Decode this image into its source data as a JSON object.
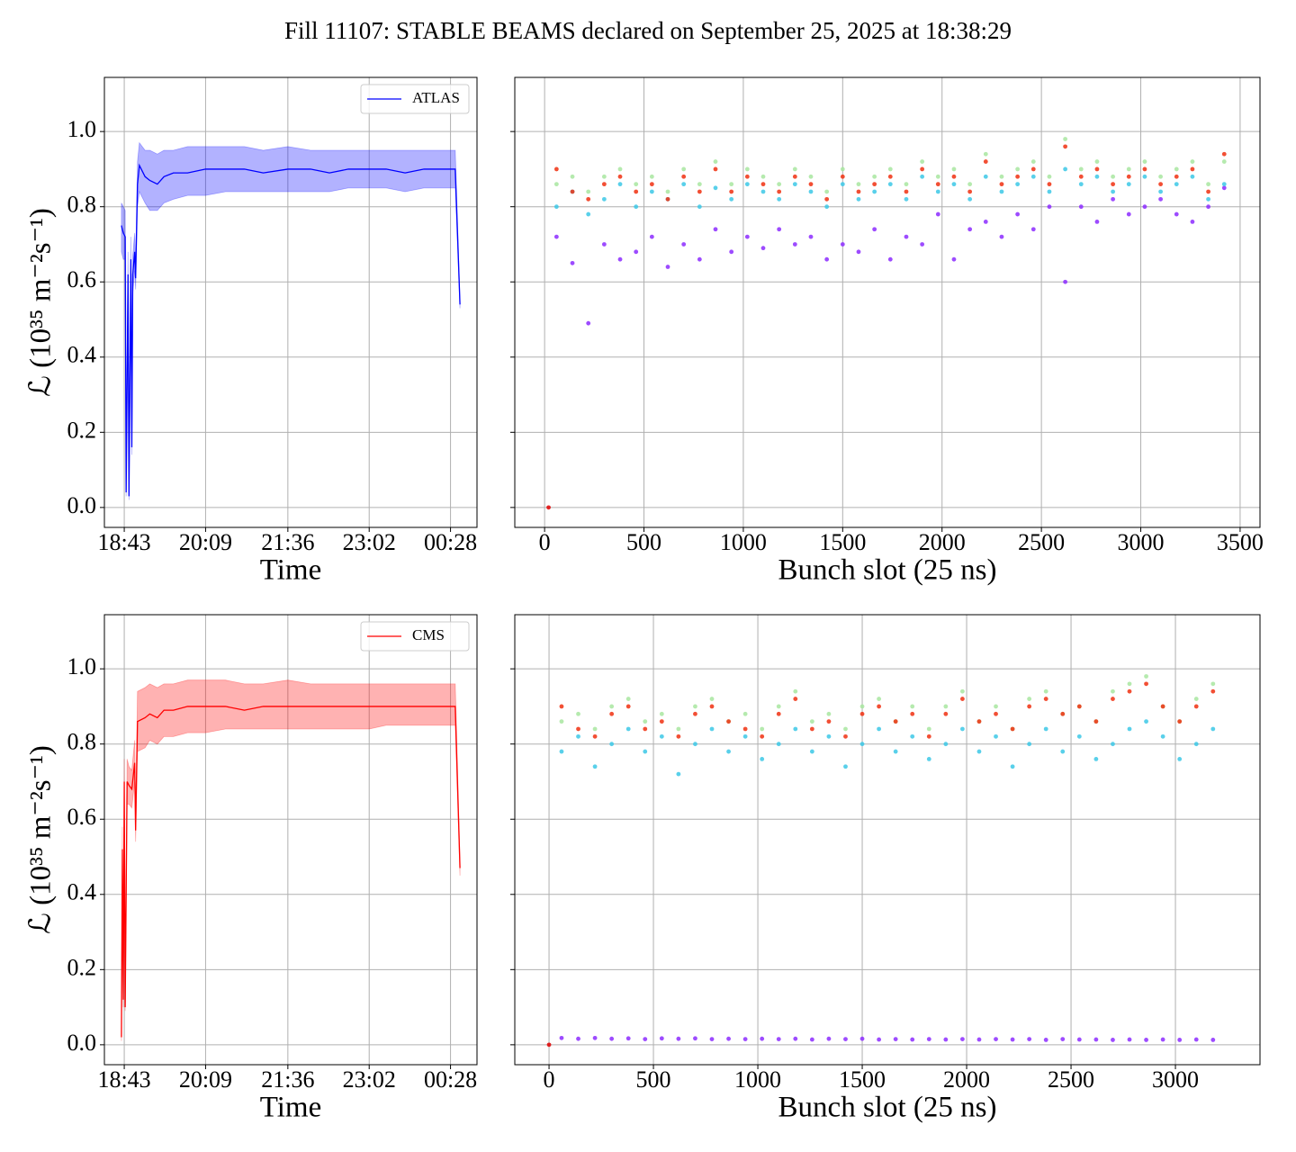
{
  "title": "Fill 11107: STABLE BEAMS declared on September 25, 2025 at 18:38:29",
  "chart_data": [
    {
      "type": "line",
      "xlabel": "Time",
      "ylabel": "ℒ (10³⁵ m⁻²s⁻¹)",
      "grid": true,
      "legend": "upper right",
      "xlim": [
        "18:22",
        "00:56"
      ],
      "xticks": [
        "18:43",
        "20:09",
        "21:36",
        "23:02",
        "00:28"
      ],
      "ylim": [
        -0.053,
        1.144
      ],
      "yticks": [
        {
          "value": 0,
          "label": "0.0"
        },
        {
          "value": 0.2,
          "label": "0.2"
        },
        {
          "value": 0.4,
          "label": "0.4"
        },
        {
          "value": 0.6,
          "label": "0.6"
        },
        {
          "value": 0.8,
          "label": "0.8"
        },
        {
          "value": 1,
          "label": "1.0"
        }
      ],
      "x": [
        "18:40",
        "18:42",
        "18:44",
        "18:45",
        "18:47",
        "18:48",
        "18:50",
        "18:51",
        "18:52",
        "18:54",
        "18:55",
        "18:57",
        "18:59",
        "19:05",
        "19:10",
        "19:18",
        "19:25",
        "19:35",
        "19:50",
        "20:09",
        "20:30",
        "20:50",
        "21:10",
        "21:36",
        "22:00",
        "22:20",
        "22:40",
        "23:02",
        "23:20",
        "23:40",
        "00:00",
        "00:15",
        "00:28",
        "00:33",
        "00:38"
      ],
      "series": [
        {
          "name": "ATLAS",
          "color": "#0000ff",
          "values": [
            0.75,
            0.73,
            0.72,
            0.04,
            0.62,
            0.03,
            0.66,
            0.16,
            0.62,
            0.68,
            0.61,
            0.86,
            0.91,
            0.88,
            0.87,
            0.86,
            0.88,
            0.89,
            0.89,
            0.9,
            0.9,
            0.9,
            0.89,
            0.9,
            0.9,
            0.89,
            0.9,
            0.9,
            0.9,
            0.89,
            0.9,
            0.9,
            0.9,
            0.9,
            0.54
          ],
          "lower": [
            0.68,
            0.66,
            0.66,
            0.03,
            0.56,
            0.02,
            0.6,
            0.14,
            0.57,
            0.63,
            0.58,
            0.8,
            0.84,
            0.81,
            0.79,
            0.79,
            0.81,
            0.82,
            0.83,
            0.83,
            0.84,
            0.84,
            0.84,
            0.84,
            0.84,
            0.84,
            0.85,
            0.85,
            0.85,
            0.84,
            0.85,
            0.85,
            0.85,
            0.85,
            0.53
          ],
          "upper": [
            0.81,
            0.8,
            0.79,
            0.05,
            0.68,
            0.04,
            0.72,
            0.18,
            0.67,
            0.73,
            0.64,
            0.92,
            0.97,
            0.95,
            0.95,
            0.94,
            0.95,
            0.95,
            0.96,
            0.96,
            0.96,
            0.96,
            0.95,
            0.96,
            0.95,
            0.95,
            0.95,
            0.95,
            0.95,
            0.95,
            0.95,
            0.95,
            0.95,
            0.95,
            0.55
          ]
        }
      ]
    },
    {
      "type": "scatter",
      "xlabel": "Bunch slot (25 ns)",
      "grid": true,
      "show_ytick_labels": false,
      "xlim": [
        -150,
        3600
      ],
      "xticks": [
        0,
        500,
        1000,
        1500,
        2000,
        2500,
        3000,
        3500
      ],
      "ylim": [
        -0.053,
        1.144
      ],
      "yticks": [
        0,
        0.2,
        0.4,
        0.6,
        0.8,
        1
      ],
      "x": [
        60,
        140,
        220,
        300,
        380,
        460,
        540,
        620,
        700,
        780,
        860,
        940,
        1020,
        1100,
        1180,
        1260,
        1340,
        1420,
        1500,
        1580,
        1660,
        1740,
        1820,
        1900,
        1980,
        2060,
        2140,
        2220,
        2300,
        2380,
        2460,
        2540,
        2620,
        2700,
        2780,
        2860,
        2940,
        3020,
        3100,
        3180,
        3260,
        3340,
        3420
      ],
      "series": [
        {
          "color": "#8c2cff",
          "values": [
            0.72,
            0.65,
            0.49,
            0.7,
            0.66,
            0.68,
            0.72,
            0.64,
            0.7,
            0.66,
            0.74,
            0.68,
            0.72,
            0.69,
            0.74,
            0.7,
            0.72,
            0.66,
            0.7,
            0.68,
            0.74,
            0.66,
            0.72,
            0.7,
            0.78,
            0.66,
            0.74,
            0.76,
            0.72,
            0.78,
            0.74,
            0.8,
            0.6,
            0.8,
            0.76,
            0.82,
            0.78,
            0.8,
            0.82,
            0.78,
            0.76,
            0.8,
            0.85
          ]
        },
        {
          "color": "#3cc8e6",
          "values": [
            0.8,
            0.84,
            0.78,
            0.82,
            0.86,
            0.8,
            0.84,
            0.82,
            0.86,
            0.8,
            0.85,
            0.82,
            0.86,
            0.84,
            0.82,
            0.86,
            0.84,
            0.8,
            0.86,
            0.82,
            0.84,
            0.86,
            0.82,
            0.88,
            0.84,
            0.86,
            0.82,
            0.88,
            0.84,
            0.86,
            0.88,
            0.84,
            0.9,
            0.86,
            0.88,
            0.84,
            0.86,
            0.88,
            0.84,
            0.86,
            0.88,
            0.82,
            0.86
          ]
        },
        {
          "color": "#a8e6a0",
          "values": [
            0.86,
            0.88,
            0.84,
            0.88,
            0.9,
            0.86,
            0.88,
            0.84,
            0.9,
            0.86,
            0.92,
            0.86,
            0.9,
            0.88,
            0.86,
            0.9,
            0.88,
            0.84,
            0.9,
            0.86,
            0.88,
            0.9,
            0.86,
            0.92,
            0.88,
            0.9,
            0.86,
            0.94,
            0.88,
            0.9,
            0.92,
            0.88,
            0.98,
            0.9,
            0.92,
            0.88,
            0.9,
            0.92,
            0.88,
            0.9,
            0.92,
            0.86,
            0.92
          ]
        },
        {
          "color": "#f03010",
          "values": [
            0.9,
            0.84,
            0.82,
            0.86,
            0.88,
            0.84,
            0.86,
            0.82,
            0.88,
            0.84,
            0.9,
            0.84,
            0.88,
            0.86,
            0.84,
            0.88,
            0.86,
            0.82,
            0.88,
            0.84,
            0.86,
            0.88,
            0.84,
            0.9,
            0.86,
            0.88,
            0.84,
            0.92,
            0.86,
            0.88,
            0.9,
            0.86,
            0.96,
            0.88,
            0.9,
            0.86,
            0.88,
            0.9,
            0.86,
            0.88,
            0.9,
            0.84,
            0.94
          ]
        },
        {
          "color": "#e00000",
          "x": [
            20
          ],
          "values": [
            0
          ]
        }
      ]
    },
    {
      "type": "line",
      "xlabel": "Time",
      "ylabel": "ℒ (10³⁵ m⁻²s⁻¹)",
      "grid": true,
      "legend": "upper right",
      "xlim": [
        "18:22",
        "00:56"
      ],
      "xticks": [
        "18:43",
        "20:09",
        "21:36",
        "23:02",
        "00:28"
      ],
      "ylim": [
        -0.053,
        1.144
      ],
      "yticks": [
        {
          "value": 0,
          "label": "0.0"
        },
        {
          "value": 0.2,
          "label": "0.2"
        },
        {
          "value": 0.4,
          "label": "0.4"
        },
        {
          "value": 0.6,
          "label": "0.6"
        },
        {
          "value": 0.8,
          "label": "0.8"
        },
        {
          "value": 1,
          "label": "1.0"
        }
      ],
      "x": [
        "18:40",
        "18:41",
        "18:42",
        "18:43",
        "18:44",
        "18:46",
        "18:48",
        "18:51",
        "18:54",
        "18:55",
        "18:57",
        "19:05",
        "19:10",
        "19:18",
        "19:25",
        "19:35",
        "19:50",
        "20:09",
        "20:30",
        "20:50",
        "21:10",
        "21:36",
        "22:00",
        "22:20",
        "22:40",
        "23:02",
        "23:20",
        "23:40",
        "00:00",
        "00:15",
        "00:28",
        "00:33",
        "00:38"
      ],
      "series": [
        {
          "name": "CMS",
          "color": "#ff0000",
          "values": [
            0.02,
            0.52,
            0.12,
            0.7,
            0.1,
            0.7,
            0.69,
            0.68,
            0.75,
            0.57,
            0.86,
            0.87,
            0.88,
            0.87,
            0.89,
            0.89,
            0.9,
            0.9,
            0.9,
            0.89,
            0.9,
            0.9,
            0.9,
            0.9,
            0.9,
            0.9,
            0.9,
            0.9,
            0.9,
            0.9,
            0.9,
            0.9,
            0.47
          ],
          "lower": [
            0.01,
            0.46,
            0.1,
            0.64,
            0.09,
            0.64,
            0.64,
            0.63,
            0.7,
            0.54,
            0.78,
            0.79,
            0.81,
            0.8,
            0.82,
            0.82,
            0.83,
            0.83,
            0.84,
            0.84,
            0.84,
            0.84,
            0.84,
            0.84,
            0.84,
            0.84,
            0.85,
            0.85,
            0.85,
            0.85,
            0.85,
            0.85,
            0.45
          ],
          "upper": [
            0.03,
            0.58,
            0.14,
            0.76,
            0.11,
            0.76,
            0.74,
            0.73,
            0.81,
            0.6,
            0.94,
            0.95,
            0.96,
            0.95,
            0.96,
            0.96,
            0.97,
            0.97,
            0.97,
            0.96,
            0.96,
            0.97,
            0.96,
            0.96,
            0.96,
            0.96,
            0.96,
            0.96,
            0.96,
            0.96,
            0.96,
            0.96,
            0.49
          ]
        }
      ]
    },
    {
      "type": "scatter",
      "xlabel": "Bunch slot (25 ns)",
      "grid": true,
      "show_ytick_labels": false,
      "xlim": [
        -164,
        3405
      ],
      "xticks": [
        0,
        500,
        1000,
        1500,
        2000,
        2500,
        3000
      ],
      "ylim": [
        -0.053,
        1.144
      ],
      "yticks": [
        0,
        0.2,
        0.4,
        0.6,
        0.8,
        1
      ],
      "x": [
        60,
        140,
        220,
        300,
        380,
        460,
        540,
        620,
        700,
        780,
        860,
        940,
        1020,
        1100,
        1180,
        1260,
        1340,
        1420,
        1500,
        1580,
        1660,
        1740,
        1820,
        1900,
        1980,
        2060,
        2140,
        2220,
        2300,
        2380,
        2460,
        2540,
        2620,
        2700,
        2780,
        2860,
        2940,
        3020,
        3100,
        3180
      ],
      "series": [
        {
          "color": "#8c2cff",
          "values": [
            0.018,
            0.016,
            0.018,
            0.016,
            0.017,
            0.015,
            0.017,
            0.016,
            0.017,
            0.015,
            0.016,
            0.015,
            0.016,
            0.015,
            0.016,
            0.014,
            0.016,
            0.015,
            0.016,
            0.014,
            0.015,
            0.014,
            0.015,
            0.014,
            0.015,
            0.014,
            0.015,
            0.014,
            0.015,
            0.013,
            0.015,
            0.014,
            0.014,
            0.013,
            0.014,
            0.013,
            0.014,
            0.013,
            0.014,
            0.013
          ]
        },
        {
          "color": "#3cc8e6",
          "values": [
            0.78,
            0.82,
            0.74,
            0.8,
            0.84,
            0.78,
            0.82,
            0.72,
            0.8,
            0.84,
            0.78,
            0.82,
            0.76,
            0.8,
            0.84,
            0.78,
            0.82,
            0.74,
            0.8,
            0.84,
            0.78,
            0.82,
            0.76,
            0.8,
            0.84,
            0.78,
            0.82,
            0.74,
            0.8,
            0.84,
            0.78,
            0.82,
            0.76,
            0.8,
            0.84,
            0.86,
            0.82,
            0.76,
            0.8,
            0.84
          ]
        },
        {
          "color": "#a8e6a0",
          "values": [
            0.86,
            0.88,
            0.84,
            0.9,
            0.92,
            0.86,
            0.88,
            0.84,
            0.9,
            0.92,
            0.86,
            0.88,
            0.84,
            0.9,
            0.94,
            0.86,
            0.88,
            0.84,
            0.9,
            0.92,
            0.86,
            0.9,
            0.84,
            0.9,
            0.94,
            0.86,
            0.9,
            0.84,
            0.92,
            0.94,
            0.88,
            0.9,
            0.86,
            0.94,
            0.96,
            0.98,
            0.9,
            0.86,
            0.92,
            0.96
          ]
        },
        {
          "color": "#f03010",
          "values": [
            0.9,
            0.84,
            0.82,
            0.88,
            0.9,
            0.84,
            0.86,
            0.82,
            0.88,
            0.9,
            0.86,
            0.84,
            0.82,
            0.88,
            0.92,
            0.84,
            0.86,
            0.82,
            0.88,
            0.9,
            0.86,
            0.88,
            0.82,
            0.88,
            0.92,
            0.86,
            0.88,
            0.84,
            0.9,
            0.92,
            0.88,
            0.9,
            0.86,
            0.92,
            0.94,
            0.96,
            0.9,
            0.86,
            0.9,
            0.94
          ]
        },
        {
          "color": "#e00000",
          "x": [
            0
          ],
          "values": [
            0
          ]
        }
      ]
    }
  ]
}
